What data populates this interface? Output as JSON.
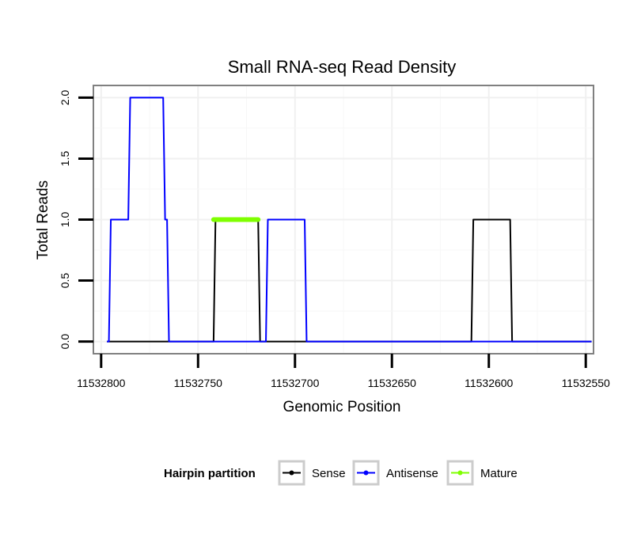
{
  "chart_data": {
    "type": "line",
    "title": "Small RNA-seq Read Density",
    "xlabel": "Genomic Position",
    "ylabel": "Total Reads",
    "xlim": [
      11532804,
      11532546
    ],
    "x_reversed": true,
    "ylim": [
      -0.1,
      2.1
    ],
    "x_ticks": [
      11532800,
      11532750,
      11532700,
      11532650,
      11532600,
      11532550
    ],
    "x_tick_labels": [
      "11532800",
      "11532750",
      "11532700",
      "11532650",
      "11532600",
      "11532550"
    ],
    "y_ticks": [
      0,
      0.5,
      1,
      1.5,
      2
    ],
    "y_tick_labels": [
      "0.0",
      "0.5",
      "1.0",
      "1.5",
      "2.0"
    ],
    "grid": true,
    "legend": {
      "title": "Hairpin partition",
      "position": "bottom",
      "entries": [
        {
          "name": "Sense",
          "color": "#000000"
        },
        {
          "name": "Antisense",
          "color": "#0000ff"
        },
        {
          "name": "Mature",
          "color": "#7fff00"
        }
      ]
    },
    "series": [
      {
        "name": "Sense",
        "color": "#000000",
        "x": [
          11532797,
          11532767,
          11532766,
          11532743,
          11532742,
          11532741,
          11532742,
          11532719,
          11532718,
          11532609,
          11532608,
          11532589,
          11532588,
          11532547
        ],
        "y": [
          0,
          0,
          0,
          0,
          0,
          1,
          1,
          1,
          0,
          0,
          1,
          1,
          0,
          0
        ]
      },
      {
        "name": "Antisense",
        "color": "#0000ff",
        "x": [
          11532797,
          11532796,
          11532795,
          11532786,
          11532785,
          11532768,
          11532767,
          11532766,
          11532765,
          11532737,
          11532716,
          11532715,
          11532714,
          11532695,
          11532694,
          11532547
        ],
        "y": [
          0,
          0,
          1,
          1,
          2,
          2,
          1,
          1,
          0,
          0,
          0,
          0,
          1,
          1,
          0,
          0
        ]
      },
      {
        "name": "Mature",
        "color": "#7fff00",
        "x": [
          11532742,
          11532719
        ],
        "y": [
          1,
          1
        ]
      }
    ]
  }
}
